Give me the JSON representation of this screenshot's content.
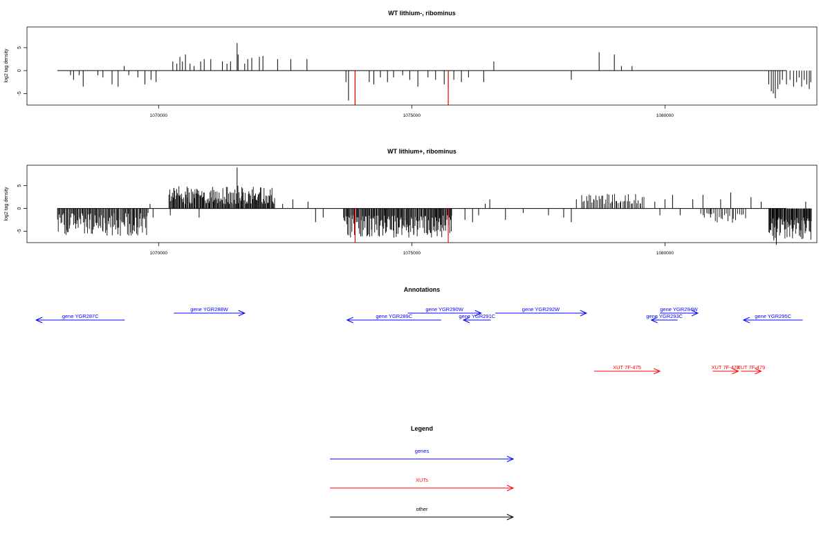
{
  "chart_data": [
    {
      "type": "bar",
      "title": "WT lithium-, ribominus",
      "ylabel": "log2 tag density",
      "xlim": [
        1067400,
        1083000
      ],
      "ylim": [
        -7.5,
        9.5
      ],
      "x_ticks": [
        1070000,
        1075000,
        1080000
      ],
      "x_tick_labels": [
        "1070000",
        "1075000",
        "1080000"
      ],
      "y_ticks": [
        -5,
        0,
        5
      ],
      "y_tick_labels": [
        "-5",
        "0",
        "5"
      ],
      "baseline": {
        "from": 1068000,
        "to": 1082400
      },
      "highlight_color": "#ff0000",
      "bar_color": "#000000",
      "values": [
        [
          1068260,
          -1
        ],
        [
          1068320,
          -2
        ],
        [
          1068430,
          -1
        ],
        [
          1068510,
          -3.5
        ],
        [
          1068800,
          -1
        ],
        [
          1068900,
          -1.5
        ],
        [
          1069080,
          -3
        ],
        [
          1069200,
          -3.5
        ],
        [
          1069410,
          -1
        ],
        [
          1069590,
          -1.5
        ],
        [
          1069730,
          -3
        ],
        [
          1069850,
          -2
        ],
        [
          1069950,
          -2.5
        ],
        [
          1069320,
          1
        ],
        [
          1070280,
          2
        ],
        [
          1070360,
          1.5
        ],
        [
          1070420,
          3
        ],
        [
          1070470,
          2
        ],
        [
          1070530,
          3.5
        ],
        [
          1070620,
          1.5
        ],
        [
          1070700,
          1
        ],
        [
          1070830,
          2
        ],
        [
          1070900,
          2.5
        ],
        [
          1071030,
          2.5
        ],
        [
          1071260,
          2
        ],
        [
          1071350,
          1.5
        ],
        [
          1071420,
          2
        ],
        [
          1071550,
          6
        ],
        [
          1071570,
          3.5
        ],
        [
          1071700,
          1.5
        ],
        [
          1071760,
          2.5
        ],
        [
          1071840,
          2.8
        ],
        [
          1071990,
          3
        ],
        [
          1072060,
          3.2
        ],
        [
          1072350,
          2.5
        ],
        [
          1072610,
          2.5
        ],
        [
          1072930,
          2.5
        ],
        [
          1073700,
          -2.5
        ],
        [
          1073750,
          -6.5
        ],
        [
          1073880,
          -7.5
        ],
        [
          1074160,
          -2.5
        ],
        [
          1074250,
          -3
        ],
        [
          1074380,
          -1.5
        ],
        [
          1074520,
          -2.5
        ],
        [
          1074640,
          -1.5
        ],
        [
          1074820,
          -1
        ],
        [
          1074960,
          -2
        ],
        [
          1075120,
          -3.5
        ],
        [
          1075320,
          -1.5
        ],
        [
          1075470,
          -2
        ],
        [
          1075640,
          -3
        ],
        [
          1075720,
          -3.5
        ],
        [
          1075830,
          -2
        ],
        [
          1075980,
          -2.5
        ],
        [
          1076120,
          -1.5
        ],
        [
          1076420,
          -2.5
        ],
        [
          1075720,
          -7.5
        ],
        [
          1076620,
          2
        ],
        [
          1078150,
          -2
        ],
        [
          1078700,
          4
        ],
        [
          1079000,
          3.5
        ],
        [
          1079140,
          1
        ],
        [
          1079350,
          1
        ],
        [
          1082050,
          -3
        ],
        [
          1082100,
          -4.5
        ],
        [
          1082140,
          -5
        ],
        [
          1082180,
          -6
        ],
        [
          1082230,
          -4
        ],
        [
          1082270,
          -3
        ],
        [
          1082320,
          -2
        ],
        [
          1082400,
          -3
        ],
        [
          1082470,
          -2
        ],
        [
          1082540,
          -3.5
        ],
        [
          1082600,
          -2.5
        ],
        [
          1082650,
          -1.5
        ],
        [
          1082700,
          -3.5
        ],
        [
          1082750,
          -2
        ],
        [
          1082800,
          -3
        ],
        [
          1082850,
          -4
        ],
        [
          1082880,
          -2.5
        ]
      ],
      "highlights": [
        [
          1073880,
          -7.5
        ],
        [
          1075720,
          -7.5
        ]
      ]
    },
    {
      "type": "bar",
      "title": "WT lithium+, ribominus",
      "ylabel": "log2 tag density",
      "xlim": [
        1067400,
        1083000
      ],
      "ylim": [
        -7.5,
        9.5
      ],
      "x_ticks": [
        1070000,
        1075000,
        1080000
      ],
      "x_tick_labels": [
        "1070000",
        "1075000",
        "1080000"
      ],
      "y_ticks": [
        -5,
        0,
        5
      ],
      "y_tick_labels": [
        "-5",
        "0",
        "5"
      ],
      "baseline": {
        "from": 1068000,
        "to": 1082400
      },
      "highlight_color": "#ff0000",
      "bar_color": "#000000",
      "dense_regions": [
        {
          "from": 1068000,
          "to": 1069800,
          "min": -6,
          "max": -1,
          "n": 110,
          "seed": 11
        },
        {
          "from": 1070200,
          "to": 1072300,
          "min": 1,
          "max": 5,
          "n": 150,
          "seed": 23
        },
        {
          "from": 1073650,
          "to": 1075800,
          "min": -6.5,
          "max": -1.5,
          "n": 150,
          "seed": 37
        },
        {
          "from": 1078350,
          "to": 1079600,
          "min": 1,
          "max": 3.2,
          "n": 45,
          "seed": 41
        },
        {
          "from": 1080700,
          "to": 1081600,
          "min": -3.5,
          "max": -1,
          "n": 25,
          "seed": 53
        },
        {
          "from": 1082050,
          "to": 1082900,
          "min": -7,
          "max": -2,
          "n": 70,
          "seed": 67
        }
      ],
      "values": [
        [
          1071550,
          9
        ],
        [
          1070300,
          4.5
        ],
        [
          1069830,
          1
        ],
        [
          1069890,
          -2
        ],
        [
          1070230,
          -1.5
        ],
        [
          1070800,
          -2
        ],
        [
          1072450,
          1
        ],
        [
          1072650,
          2
        ],
        [
          1072950,
          1.5
        ],
        [
          1073100,
          -3
        ],
        [
          1073250,
          -2
        ],
        [
          1076050,
          -2.5
        ],
        [
          1076200,
          -3
        ],
        [
          1076320,
          -1.5
        ],
        [
          1076450,
          1
        ],
        [
          1076540,
          2
        ],
        [
          1076850,
          -2.5
        ],
        [
          1077200,
          -1
        ],
        [
          1077700,
          -1.5
        ],
        [
          1078000,
          -2
        ],
        [
          1078150,
          -3
        ],
        [
          1078250,
          2
        ],
        [
          1079800,
          1.5
        ],
        [
          1079900,
          -1.5
        ],
        [
          1080000,
          2
        ],
        [
          1080150,
          3
        ],
        [
          1080300,
          -1.5
        ],
        [
          1080550,
          2
        ],
        [
          1080750,
          3
        ],
        [
          1080900,
          -2
        ],
        [
          1081100,
          2
        ],
        [
          1081300,
          3.5
        ],
        [
          1081700,
          2.5
        ],
        [
          1081900,
          1.5
        ],
        [
          1082150,
          -7
        ],
        [
          1082200,
          -8
        ],
        [
          1082780,
          1.5
        ],
        [
          1082850,
          -5
        ]
      ],
      "highlights": [
        [
          1073880,
          -7.5
        ],
        [
          1075720,
          -7.5
        ]
      ]
    }
  ],
  "annotations": {
    "title": "Annotations",
    "xlim": [
      1067400,
      1083000
    ],
    "genes_color": "#0000ff",
    "xuts_color": "#ff0000",
    "features": [
      {
        "label": "gene YGR287C",
        "start": 1067580,
        "end": 1069330,
        "dir": "left",
        "row": 2,
        "kind": "gene"
      },
      {
        "label": "gene YGR288W",
        "start": 1070300,
        "end": 1071700,
        "dir": "right",
        "row": 1,
        "kind": "gene"
      },
      {
        "label": "gene YGR289C",
        "start": 1073720,
        "end": 1075580,
        "dir": "left",
        "row": 2,
        "kind": "gene"
      },
      {
        "label": "gene YGR290W",
        "start": 1074920,
        "end": 1076370,
        "dir": "right",
        "row": 1,
        "kind": "gene"
      },
      {
        "label": "gene YGR291C",
        "start": 1076020,
        "end": 1076560,
        "dir": "left",
        "row": 2,
        "kind": "gene"
      },
      {
        "label": "gene YGR292W",
        "start": 1076650,
        "end": 1078450,
        "dir": "right",
        "row": 1,
        "kind": "gene"
      },
      {
        "label": "gene YGR293C",
        "start": 1079730,
        "end": 1080250,
        "dir": "left",
        "row": 2,
        "kind": "gene"
      },
      {
        "label": "gene YGR294W",
        "start": 1079900,
        "end": 1080650,
        "dir": "right",
        "row": 1,
        "kind": "gene"
      },
      {
        "label": "gene YGR295C",
        "start": 1081550,
        "end": 1082720,
        "dir": "left",
        "row": 2,
        "kind": "gene"
      },
      {
        "label": "XUT 7F-475",
        "start": 1078600,
        "end": 1079900,
        "dir": "right",
        "row": 3,
        "kind": "xut"
      },
      {
        "label": "XUT 7F-478",
        "start": 1080940,
        "end": 1081450,
        "dir": "right",
        "row": 3,
        "kind": "xut"
      },
      {
        "label": "XUT 7F-479",
        "start": 1081500,
        "end": 1081900,
        "dir": "right",
        "row": 3,
        "kind": "xut"
      }
    ]
  },
  "legend": {
    "title": "Legend",
    "items": [
      {
        "label": "genes",
        "color": "#0000ff"
      },
      {
        "label": "XUTs",
        "color": "#ff0000"
      },
      {
        "label": "other",
        "color": "#000000"
      }
    ]
  }
}
